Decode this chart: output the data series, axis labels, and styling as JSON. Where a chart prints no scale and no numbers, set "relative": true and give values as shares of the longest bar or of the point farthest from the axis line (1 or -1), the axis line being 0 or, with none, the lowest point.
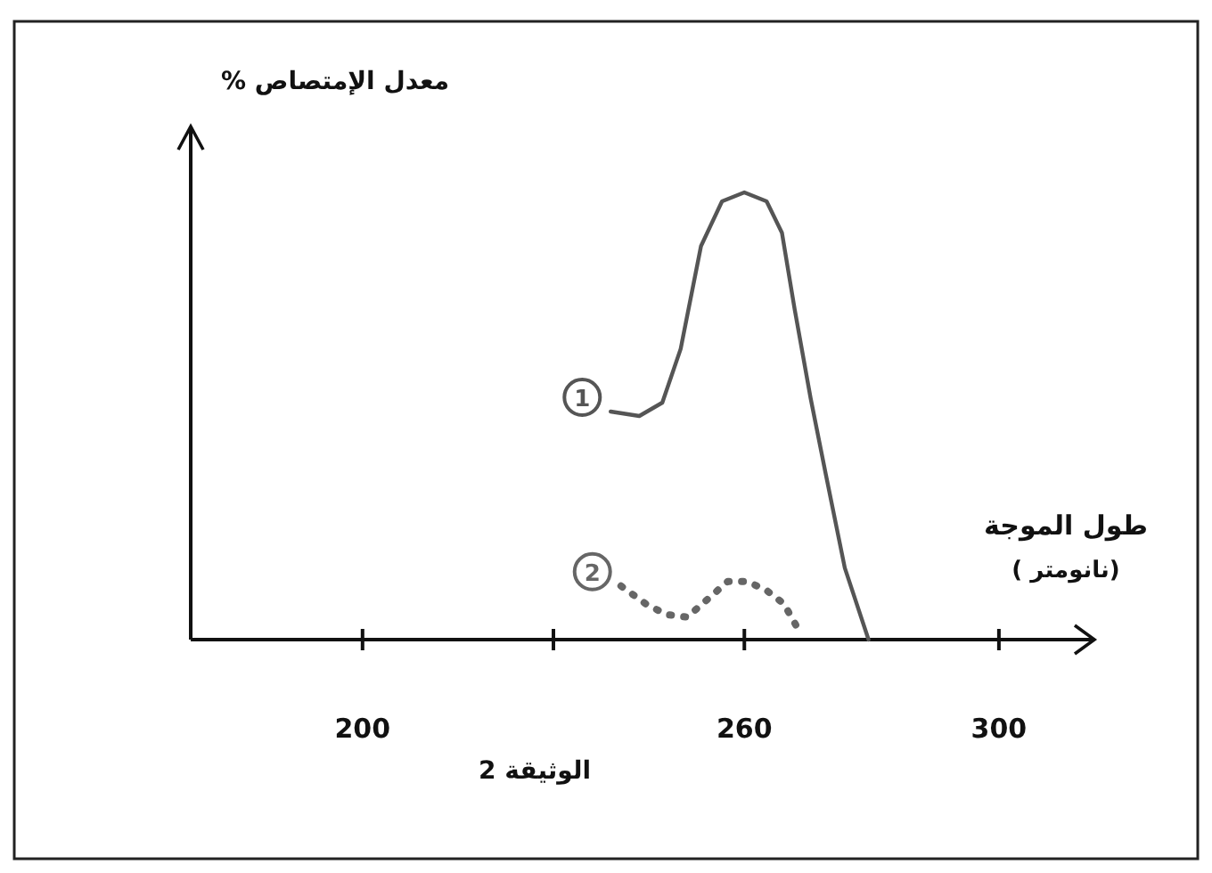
{
  "chart_data": {
    "type": "line",
    "relative": true,
    "xlabel": "طول الموجة\n(نانومتر )",
    "ylabel": "معدل الإمتصاص %",
    "annotations": [
      "الوثيقة 2"
    ],
    "xlim": [
      173,
      315
    ],
    "xticks": [
      200,
      {
        "value": 230,
        "label": null
      },
      260,
      300
    ],
    "series": [
      {
        "name": "1",
        "color": "#555555",
        "line_style": "solid",
        "x": [
          239.0,
          243.5,
          247.1,
          250.0,
          253.2,
          256.5,
          260.0,
          263.5,
          265.9,
          267.9,
          270.4,
          272.8,
          275.8,
          279.5
        ],
        "values": [
          0.51,
          0.5,
          0.53,
          0.65,
          0.88,
          0.98,
          1.0,
          0.98,
          0.91,
          0.74,
          0.54,
          0.37,
          0.16,
          0
        ]
      },
      {
        "name": "2",
        "color": "#666666",
        "line_style": "dotted",
        "x": [
          240.6,
          244.5,
          247.7,
          251.0,
          254.2,
          257.4,
          260.5,
          263.5,
          266.2,
          268.6
        ],
        "values": [
          0.12,
          0.08,
          0.056,
          0.05,
          0.09,
          0.13,
          0.13,
          0.11,
          0.08,
          0.02
        ]
      }
    ]
  }
}
